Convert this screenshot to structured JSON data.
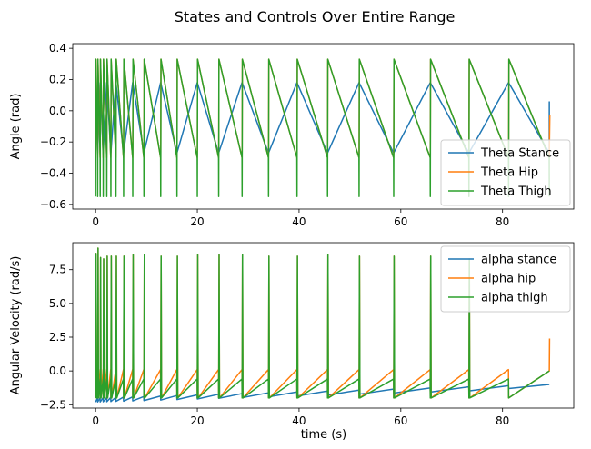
{
  "figure": {
    "title": "States and Controls Over Entire Range"
  },
  "chart_data": [
    {
      "type": "line",
      "ylabel": "Angle (rad)",
      "xlabel": "",
      "xlim": [
        -4.5,
        94
      ],
      "ylim": [
        -0.63,
        0.43
      ],
      "xticks": [
        0,
        20,
        40,
        60,
        80
      ],
      "yticks": [
        -0.6,
        -0.4,
        -0.2,
        0.0,
        0.2,
        0.4
      ],
      "ytick_labels": [
        "−0.6",
        "−0.4",
        "−0.2",
        "0.0",
        "0.2",
        "0.4"
      ],
      "legend_position": "lower-right",
      "series": [
        {
          "name": "Theta Stance",
          "color": "#1f77b4"
        },
        {
          "name": "Theta Hip",
          "color": "#ff7f0e"
        },
        {
          "name": "Theta Thigh",
          "color": "#2ca02c"
        }
      ],
      "gait": {
        "step_times": [
          0,
          0.4,
          0.9,
          1.5,
          2.2,
          3.0,
          4.0,
          5.5,
          7.3,
          9.5,
          12.8,
          16.0,
          20.0,
          24.2,
          28.8,
          34.0,
          39.6,
          45.6,
          51.8,
          58.6,
          65.8,
          73.4,
          81.2,
          89.2
        ],
        "stance_high": 0.18,
        "stance_low": -0.27,
        "thigh_low": -0.55,
        "thigh_peak": 0.33,
        "hip_end": -0.03
      }
    },
    {
      "type": "line",
      "ylabel": "Angular Velocity (rad/s)",
      "xlabel": "time (s)",
      "xlim": [
        -4.5,
        94
      ],
      "ylim": [
        -2.75,
        9.5
      ],
      "xticks": [
        0,
        20,
        40,
        60,
        80
      ],
      "yticks": [
        -2.5,
        0.0,
        2.5,
        5.0,
        7.5
      ],
      "ytick_labels": [
        "−2.5",
        "0.0",
        "2.5",
        "5.0",
        "7.5"
      ],
      "legend_position": "upper-right",
      "series": [
        {
          "name": "alpha stance",
          "color": "#1f77b4"
        },
        {
          "name": "alpha hip",
          "color": "#ff7f0e"
        },
        {
          "name": "alpha thigh",
          "color": "#2ca02c"
        }
      ],
      "gait": {
        "spike_values": [
          8.7,
          9.1,
          8.4,
          8.3,
          8.5,
          8.5,
          8.5,
          8.5,
          8.6,
          8.6,
          8.5,
          8.5,
          8.6,
          8.6,
          8.6,
          8.5,
          8.5,
          8.6,
          8.5,
          8.5,
          8.5,
          8.3
        ],
        "thigh_low": -2.0,
        "stance_start": -2.0,
        "stance_end": -1.0,
        "hip_final": 2.4
      }
    }
  ]
}
